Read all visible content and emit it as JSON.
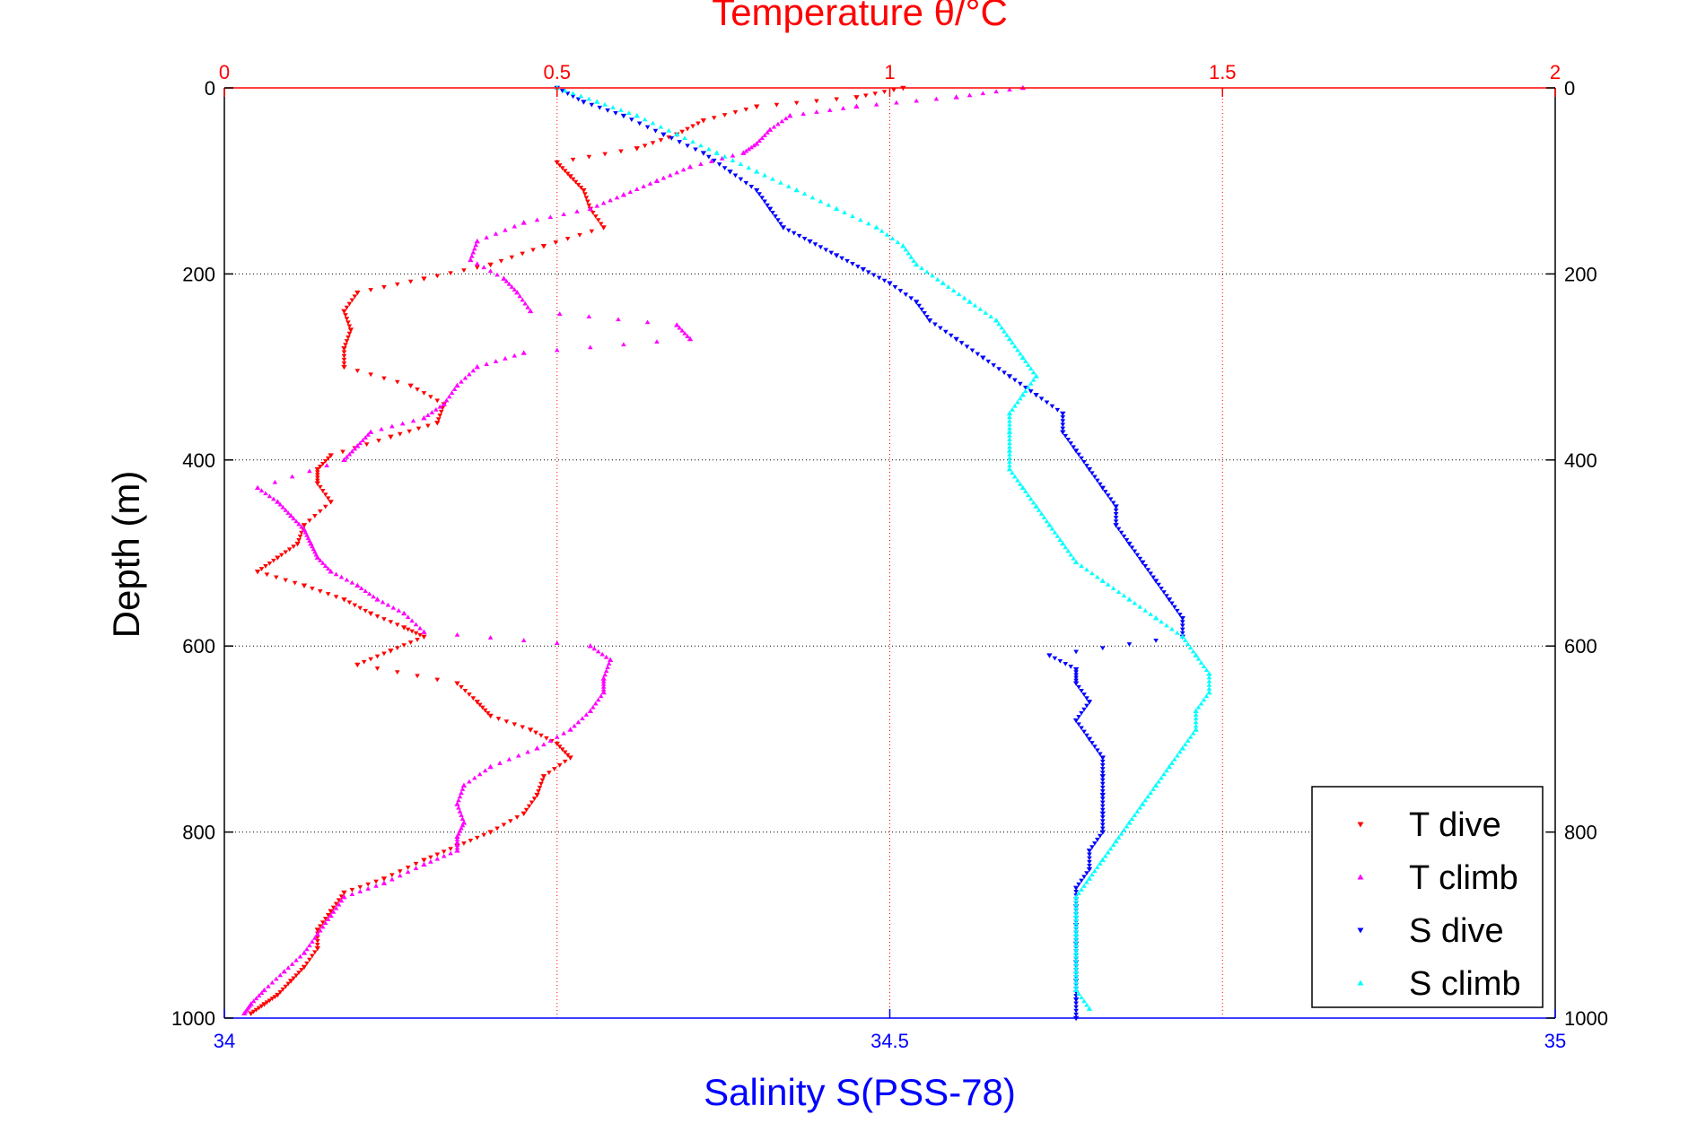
{
  "chart_data": {
    "type": "scatter",
    "top_axis": {
      "label": "Temperature θ/°C",
      "range": [
        0,
        2
      ],
      "ticks": [
        "0",
        "0.5",
        "1",
        "1.5",
        "2"
      ],
      "color": "#ff0000"
    },
    "bottom_axis": {
      "label": "Salinity S(PSS-78)",
      "range": [
        34,
        35
      ],
      "ticks": [
        "34",
        "34.5",
        "35"
      ],
      "color": "#0000ff"
    },
    "y_axis": {
      "label": "Depth (m)",
      "range": [
        0,
        1000
      ],
      "reversed": true,
      "ticks": [
        "0",
        "200",
        "400",
        "600",
        "800",
        "1000"
      ]
    },
    "grid": true,
    "legend_position": "bottom-right",
    "series": [
      {
        "name": "T dive",
        "axis": "temperature",
        "color": "#ff0000",
        "marker": "triangle-down",
        "points": [
          [
            1.02,
            0
          ],
          [
            0.95,
            10
          ],
          [
            0.8,
            20
          ],
          [
            0.72,
            35
          ],
          [
            0.68,
            50
          ],
          [
            0.62,
            65
          ],
          [
            0.5,
            80
          ],
          [
            0.52,
            95
          ],
          [
            0.54,
            110
          ],
          [
            0.55,
            130
          ],
          [
            0.57,
            150
          ],
          [
            0.48,
            170
          ],
          [
            0.4,
            190
          ],
          [
            0.3,
            205
          ],
          [
            0.2,
            220
          ],
          [
            0.18,
            240
          ],
          [
            0.19,
            260
          ],
          [
            0.18,
            280
          ],
          [
            0.18,
            300
          ],
          [
            0.28,
            320
          ],
          [
            0.33,
            340
          ],
          [
            0.32,
            360
          ],
          [
            0.25,
            375
          ],
          [
            0.16,
            395
          ],
          [
            0.14,
            410
          ],
          [
            0.14,
            425
          ],
          [
            0.16,
            445
          ],
          [
            0.12,
            470
          ],
          [
            0.11,
            490
          ],
          [
            0.08,
            505
          ],
          [
            0.05,
            520
          ],
          [
            0.12,
            535
          ],
          [
            0.18,
            550
          ],
          [
            0.22,
            565
          ],
          [
            0.27,
            580
          ],
          [
            0.3,
            590
          ],
          [
            0.25,
            605
          ],
          [
            0.2,
            620
          ],
          [
            0.35,
            640
          ],
          [
            0.38,
            660
          ],
          [
            0.4,
            675
          ],
          [
            0.46,
            690
          ],
          [
            0.5,
            705
          ],
          [
            0.52,
            720
          ],
          [
            0.48,
            740
          ],
          [
            0.47,
            760
          ],
          [
            0.45,
            780
          ],
          [
            0.4,
            800
          ],
          [
            0.35,
            815
          ],
          [
            0.3,
            830
          ],
          [
            0.24,
            850
          ],
          [
            0.18,
            865
          ],
          [
            0.16,
            885
          ],
          [
            0.14,
            905
          ],
          [
            0.14,
            925
          ],
          [
            0.12,
            945
          ],
          [
            0.1,
            960
          ],
          [
            0.08,
            975
          ],
          [
            0.06,
            985
          ],
          [
            0.04,
            995
          ]
        ]
      },
      {
        "name": "T climb",
        "axis": "temperature",
        "color": "#ff00ff",
        "marker": "triangle-up",
        "points": [
          [
            1.2,
            0
          ],
          [
            1.1,
            10
          ],
          [
            0.95,
            20
          ],
          [
            0.85,
            30
          ],
          [
            0.82,
            45
          ],
          [
            0.8,
            60
          ],
          [
            0.78,
            70
          ],
          [
            0.7,
            85
          ],
          [
            0.65,
            100
          ],
          [
            0.6,
            115
          ],
          [
            0.55,
            130
          ],
          [
            0.45,
            145
          ],
          [
            0.38,
            165
          ],
          [
            0.37,
            185
          ],
          [
            0.42,
            205
          ],
          [
            0.44,
            220
          ],
          [
            0.46,
            240
          ],
          [
            0.68,
            255
          ],
          [
            0.7,
            270
          ],
          [
            0.45,
            285
          ],
          [
            0.38,
            300
          ],
          [
            0.35,
            320
          ],
          [
            0.33,
            340
          ],
          [
            0.3,
            355
          ],
          [
            0.22,
            370
          ],
          [
            0.2,
            385
          ],
          [
            0.18,
            400
          ],
          [
            0.05,
            430
          ],
          [
            0.08,
            445
          ],
          [
            0.1,
            460
          ],
          [
            0.12,
            475
          ],
          [
            0.13,
            490
          ],
          [
            0.14,
            505
          ],
          [
            0.16,
            520
          ],
          [
            0.2,
            535
          ],
          [
            0.23,
            550
          ],
          [
            0.27,
            565
          ],
          [
            0.3,
            585
          ],
          [
            0.55,
            600
          ],
          [
            0.58,
            615
          ],
          [
            0.57,
            635
          ],
          [
            0.57,
            650
          ],
          [
            0.55,
            670
          ],
          [
            0.52,
            690
          ],
          [
            0.47,
            710
          ],
          [
            0.4,
            730
          ],
          [
            0.36,
            750
          ],
          [
            0.35,
            770
          ],
          [
            0.36,
            790
          ],
          [
            0.35,
            805
          ],
          [
            0.35,
            820
          ],
          [
            0.3,
            835
          ],
          [
            0.24,
            855
          ],
          [
            0.18,
            870
          ],
          [
            0.16,
            890
          ],
          [
            0.14,
            910
          ],
          [
            0.12,
            930
          ],
          [
            0.09,
            950
          ],
          [
            0.06,
            970
          ],
          [
            0.04,
            985
          ],
          [
            0.03,
            995
          ]
        ]
      },
      {
        "name": "S dive",
        "axis": "salinity",
        "color": "#0000ff",
        "marker": "triangle-down",
        "points": [
          [
            34.25,
            0
          ],
          [
            34.27,
            15
          ],
          [
            34.3,
            30
          ],
          [
            34.33,
            50
          ],
          [
            34.36,
            70
          ],
          [
            34.38,
            90
          ],
          [
            34.4,
            110
          ],
          [
            34.41,
            130
          ],
          [
            34.42,
            150
          ],
          [
            34.44,
            165
          ],
          [
            34.46,
            180
          ],
          [
            34.48,
            195
          ],
          [
            34.5,
            210
          ],
          [
            34.52,
            230
          ],
          [
            34.53,
            250
          ],
          [
            34.55,
            270
          ],
          [
            34.57,
            290
          ],
          [
            34.59,
            310
          ],
          [
            34.61,
            330
          ],
          [
            34.63,
            350
          ],
          [
            34.63,
            370
          ],
          [
            34.64,
            390
          ],
          [
            34.65,
            410
          ],
          [
            34.66,
            430
          ],
          [
            34.67,
            450
          ],
          [
            34.67,
            470
          ],
          [
            34.68,
            490
          ],
          [
            34.69,
            510
          ],
          [
            34.7,
            530
          ],
          [
            34.71,
            550
          ],
          [
            34.72,
            570
          ],
          [
            34.72,
            590
          ],
          [
            34.62,
            610
          ],
          [
            34.64,
            625
          ],
          [
            34.64,
            640
          ],
          [
            34.65,
            660
          ],
          [
            34.64,
            680
          ],
          [
            34.65,
            700
          ],
          [
            34.66,
            720
          ],
          [
            34.66,
            740
          ],
          [
            34.66,
            760
          ],
          [
            34.66,
            780
          ],
          [
            34.66,
            800
          ],
          [
            34.65,
            820
          ],
          [
            34.65,
            840
          ],
          [
            34.64,
            860
          ],
          [
            34.64,
            880
          ],
          [
            34.64,
            900
          ],
          [
            34.64,
            920
          ],
          [
            34.64,
            940
          ],
          [
            34.64,
            960
          ],
          [
            34.64,
            980
          ],
          [
            34.64,
            1000
          ]
        ]
      },
      {
        "name": "S climb",
        "axis": "salinity",
        "color": "#00ffff",
        "marker": "triangle-up",
        "points": [
          [
            34.25,
            0
          ],
          [
            34.28,
            15
          ],
          [
            34.31,
            30
          ],
          [
            34.34,
            50
          ],
          [
            34.37,
            70
          ],
          [
            34.4,
            90
          ],
          [
            34.43,
            110
          ],
          [
            34.46,
            130
          ],
          [
            34.49,
            150
          ],
          [
            34.51,
            170
          ],
          [
            34.52,
            190
          ],
          [
            34.54,
            210
          ],
          [
            34.56,
            230
          ],
          [
            34.58,
            250
          ],
          [
            34.59,
            270
          ],
          [
            34.6,
            290
          ],
          [
            34.61,
            310
          ],
          [
            34.6,
            330
          ],
          [
            34.59,
            350
          ],
          [
            34.59,
            370
          ],
          [
            34.59,
            390
          ],
          [
            34.59,
            410
          ],
          [
            34.6,
            430
          ],
          [
            34.61,
            450
          ],
          [
            34.62,
            470
          ],
          [
            34.63,
            490
          ],
          [
            34.64,
            510
          ],
          [
            34.66,
            530
          ],
          [
            34.68,
            550
          ],
          [
            34.7,
            570
          ],
          [
            34.72,
            590
          ],
          [
            34.73,
            610
          ],
          [
            34.74,
            630
          ],
          [
            34.74,
            650
          ],
          [
            34.73,
            670
          ],
          [
            34.73,
            690
          ],
          [
            34.72,
            710
          ],
          [
            34.71,
            730
          ],
          [
            34.7,
            750
          ],
          [
            34.69,
            770
          ],
          [
            34.68,
            790
          ],
          [
            34.67,
            810
          ],
          [
            34.66,
            830
          ],
          [
            34.65,
            850
          ],
          [
            34.64,
            870
          ],
          [
            34.64,
            890
          ],
          [
            34.64,
            910
          ],
          [
            34.64,
            930
          ],
          [
            34.64,
            950
          ],
          [
            34.64,
            970
          ],
          [
            34.65,
            990
          ]
        ]
      }
    ]
  }
}
